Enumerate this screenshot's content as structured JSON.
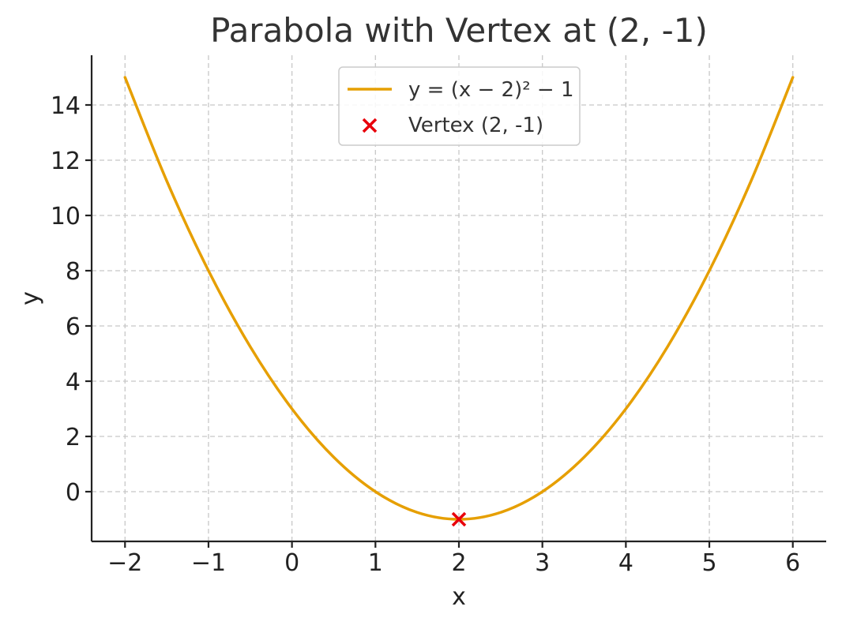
{
  "chart_data": {
    "type": "line",
    "title": "Parabola with Vertex at (2, -1)",
    "xlabel": "x",
    "ylabel": "y",
    "xlim": [
      -2.4,
      6.4
    ],
    "ylim": [
      -1.8,
      15.8
    ],
    "xticks": [
      -2,
      -1,
      0,
      1,
      2,
      3,
      4,
      5,
      6
    ],
    "xtick_labels": [
      "−2",
      "−1",
      "0",
      "1",
      "2",
      "3",
      "4",
      "5",
      "6"
    ],
    "yticks": [
      0,
      2,
      4,
      6,
      8,
      10,
      12,
      14
    ],
    "ytick_labels": [
      "0",
      "2",
      "4",
      "6",
      "8",
      "10",
      "12",
      "14"
    ],
    "grid": true,
    "legend_position": "top-center",
    "series": [
      {
        "name": "y = (x − 2)² − 1",
        "kind": "line",
        "color": "#e69f00",
        "x": [
          -2.0,
          -1.5,
          -1.0,
          -0.5,
          0.0,
          0.5,
          1.0,
          1.5,
          2.0,
          2.5,
          3.0,
          3.5,
          4.0,
          4.5,
          5.0,
          5.5,
          6.0
        ],
        "y": [
          15,
          11.25,
          8,
          5.25,
          3,
          1.25,
          0,
          -0.75,
          -1,
          -0.75,
          0,
          1.25,
          3,
          5.25,
          8,
          11.25,
          15
        ]
      },
      {
        "name": "Vertex (2, -1)",
        "kind": "scatter",
        "marker": "x",
        "color": "#e8000b",
        "x": [
          2
        ],
        "y": [
          -1
        ]
      }
    ]
  }
}
